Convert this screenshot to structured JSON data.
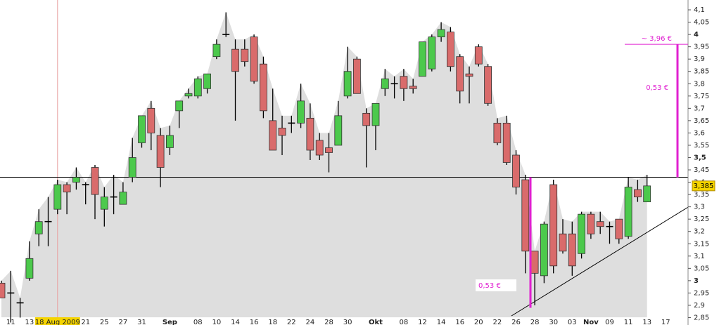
{
  "chart_data": {
    "type": "candlestick",
    "categories": [
      null,
      "11",
      null,
      "13",
      null,
      null,
      "18 Aug 2009",
      null,
      null,
      "21",
      null,
      "25",
      null,
      "27",
      null,
      "31",
      null,
      null,
      "Sep",
      null,
      null,
      "08",
      null,
      "10",
      null,
      "14",
      null,
      "16",
      null,
      "18",
      null,
      "22",
      null,
      "24",
      null,
      "28",
      null,
      "30",
      null,
      null,
      "Okt",
      null,
      null,
      "08",
      null,
      "12",
      null,
      "14",
      null,
      "16",
      null,
      "20",
      null,
      "22",
      null,
      "26",
      null,
      "28",
      null,
      "30",
      null,
      "03",
      null,
      "Nov",
      null,
      "09",
      null,
      "11",
      null,
      "13",
      null,
      "17"
    ],
    "open": [
      2.99,
      2.95,
      2.91,
      3.01,
      3.19,
      3.24,
      3.29,
      3.39,
      3.4,
      3.39,
      3.46,
      3.29,
      3.34,
      3.31,
      3.42,
      3.56,
      3.7,
      3.59,
      3.54,
      3.69,
      3.75,
      3.75,
      3.78,
      3.91,
      4.0,
      3.94,
      3.94,
      3.99,
      3.88,
      3.65,
      3.62,
      3.64,
      3.64,
      3.66,
      3.57,
      3.54,
      3.55,
      3.75,
      3.9,
      3.68,
      3.63,
      3.78,
      3.8,
      3.83,
      3.79,
      3.83,
      3.86,
      3.99,
      4.01,
      3.91,
      3.84,
      3.95,
      3.87,
      3.64,
      3.64,
      3.51,
      3.41,
      3.12,
      3.02,
      3.39,
      3.19,
      3.19,
      3.11,
      3.27,
      3.24,
      3.22,
      3.25,
      3.18,
      3.37,
      3.32,
      null,
      null
    ],
    "high": [
      3.0,
      3.04,
      2.93,
      3.16,
      3.29,
      3.34,
      3.41,
      3.4,
      3.46,
      3.4,
      3.47,
      3.38,
      3.43,
      3.4,
      3.58,
      3.67,
      3.73,
      3.62,
      3.63,
      3.73,
      3.78,
      3.83,
      3.84,
      3.98,
      4.09,
      3.98,
      3.98,
      4.0,
      3.91,
      3.78,
      3.67,
      3.67,
      3.8,
      3.72,
      3.6,
      3.6,
      3.73,
      3.95,
      3.91,
      3.7,
      3.72,
      3.86,
      3.83,
      3.86,
      3.82,
      3.97,
      4.0,
      4.05,
      4.03,
      3.92,
      3.87,
      3.96,
      3.88,
      3.66,
      3.67,
      3.53,
      3.43,
      3.12,
      3.24,
      3.41,
      3.25,
      3.24,
      3.28,
      3.28,
      3.28,
      3.24,
      3.25,
      3.42,
      3.41,
      3.43,
      null,
      null
    ],
    "low": [
      2.93,
      2.83,
      2.85,
      3.0,
      3.14,
      3.14,
      3.27,
      3.27,
      3.37,
      3.31,
      3.25,
      3.22,
      3.27,
      3.31,
      3.4,
      3.54,
      3.53,
      3.38,
      3.51,
      3.62,
      3.74,
      3.74,
      3.76,
      3.9,
      3.99,
      3.65,
      3.87,
      3.8,
      3.66,
      3.53,
      3.51,
      3.6,
      3.62,
      3.49,
      3.49,
      3.44,
      3.55,
      3.74,
      3.76,
      3.46,
      3.53,
      3.75,
      3.74,
      3.73,
      3.76,
      3.83,
      3.85,
      3.97,
      3.85,
      3.72,
      3.72,
      3.87,
      3.71,
      3.55,
      3.47,
      3.35,
      3.03,
      2.9,
      2.99,
      3.03,
      3.11,
      3.02,
      3.09,
      3.17,
      3.19,
      3.15,
      3.15,
      3.17,
      3.32,
      3.32,
      null,
      null
    ],
    "close": [
      2.93,
      2.95,
      2.91,
      3.09,
      3.24,
      3.24,
      3.39,
      3.36,
      3.42,
      3.39,
      3.35,
      3.34,
      3.34,
      3.36,
      3.5,
      3.67,
      3.6,
      3.46,
      3.59,
      3.73,
      3.76,
      3.82,
      3.84,
      3.96,
      4.0,
      3.85,
      3.89,
      3.81,
      3.69,
      3.53,
      3.59,
      3.64,
      3.73,
      3.53,
      3.51,
      3.52,
      3.67,
      3.85,
      3.76,
      3.63,
      3.72,
      3.82,
      3.8,
      3.78,
      3.78,
      3.97,
      3.99,
      4.02,
      3.87,
      3.77,
      3.83,
      3.88,
      3.72,
      3.56,
      3.48,
      3.38,
      3.12,
      3.03,
      3.23,
      3.06,
      3.12,
      3.06,
      3.27,
      3.19,
      3.22,
      3.22,
      3.17,
      3.38,
      3.34,
      3.385,
      null,
      null
    ],
    "up_color": "#4cc94c",
    "down_color": "#d96b6b",
    "area_color": "#dedede",
    "marker_index": 6,
    "ylim": [
      2.82,
      4.14
    ],
    "yticks": [
      {
        "value": 2.85,
        "label": "2,85"
      },
      {
        "value": 2.9,
        "label": "2,9"
      },
      {
        "value": 2.95,
        "label": "2,95"
      },
      {
        "value": 3,
        "label": "3"
      },
      {
        "value": 3.05,
        "label": "3,05"
      },
      {
        "value": 3.1,
        "label": "3,1"
      },
      {
        "value": 3.15,
        "label": "3,15"
      },
      {
        "value": 3.2,
        "label": "3,2"
      },
      {
        "value": 3.25,
        "label": "3,25"
      },
      {
        "value": 3.3,
        "label": "3,3"
      },
      {
        "value": 3.35,
        "label": "3,35"
      },
      {
        "value": 3.4,
        "label": "3,4"
      },
      {
        "value": 3.45,
        "label": "3,45"
      },
      {
        "value": 3.5,
        "label": "3,5"
      },
      {
        "value": 3.55,
        "label": "3,55"
      },
      {
        "value": 3.6,
        "label": "3,6"
      },
      {
        "value": 3.65,
        "label": "3,65"
      },
      {
        "value": 3.7,
        "label": "3,7"
      },
      {
        "value": 3.75,
        "label": "3,75"
      },
      {
        "value": 3.8,
        "label": "3,8"
      },
      {
        "value": 3.85,
        "label": "3,85"
      },
      {
        "value": 3.9,
        "label": "3,9"
      },
      {
        "value": 3.95,
        "label": "3,95"
      },
      {
        "value": 4,
        "label": "4"
      },
      {
        "value": 4.05,
        "label": "4,05"
      },
      {
        "value": 4.1,
        "label": "4,1"
      }
    ],
    "reference_line": 3.42,
    "last_price": {
      "value": 3.385,
      "label": "3,385"
    },
    "annotations": {
      "target": {
        "value": 3.96,
        "label": "~ 3,96 €"
      },
      "gain": {
        "value": 0.53,
        "label": "0,53 €"
      },
      "drop": {
        "value": 0.53,
        "label": "0,53 €"
      }
    }
  }
}
